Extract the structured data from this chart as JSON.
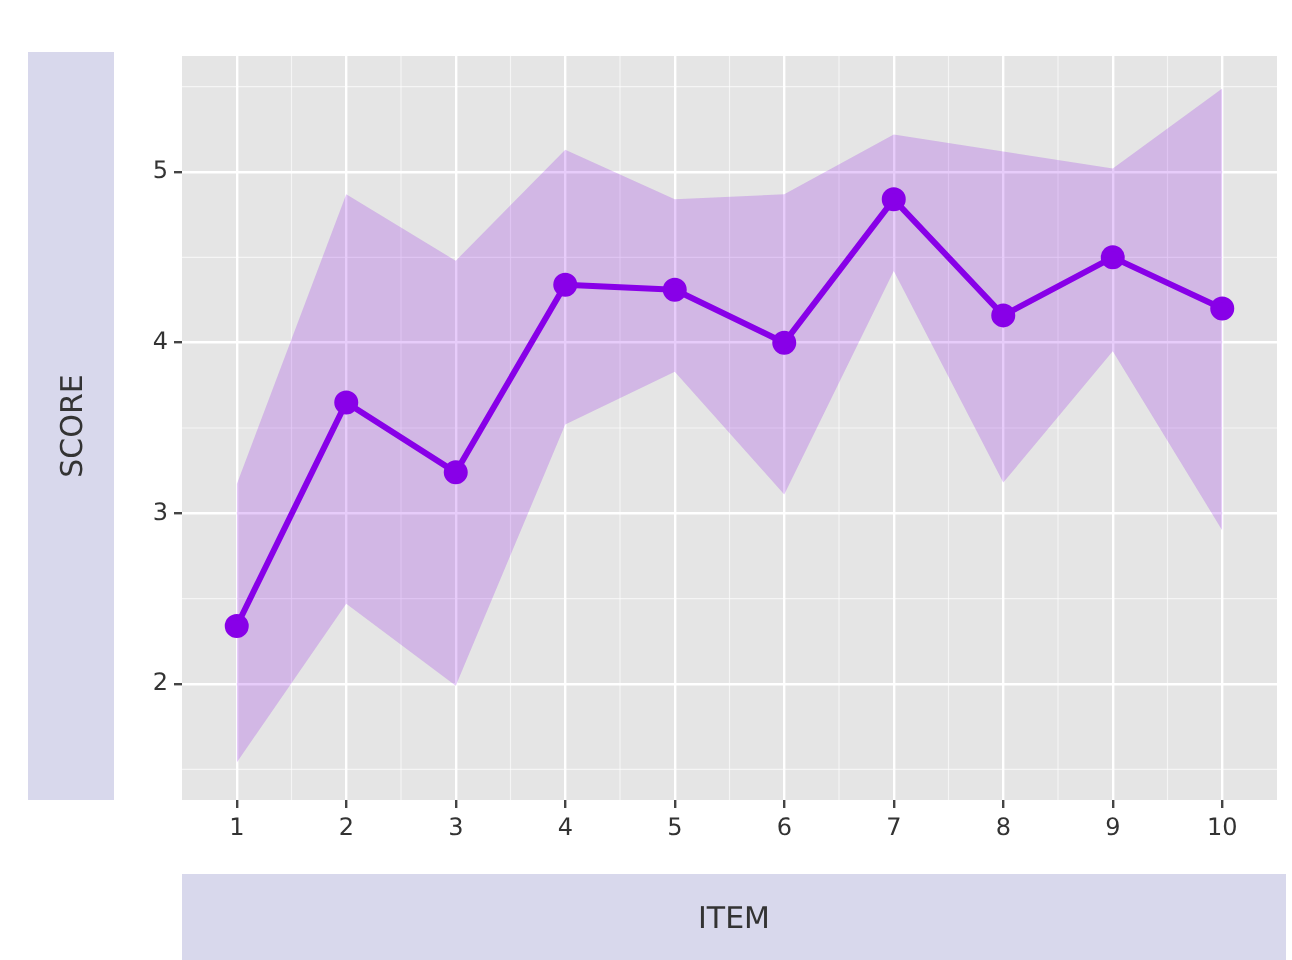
{
  "chart_data": {
    "type": "line",
    "xlabel": "ITEM",
    "ylabel": "SCORE",
    "categories": [
      "1",
      "2",
      "3",
      "4",
      "5",
      "6",
      "7",
      "8",
      "9",
      "10"
    ],
    "series": [
      {
        "color": "#8800e8",
        "values": [
          2.34,
          3.65,
          3.24,
          4.34,
          4.31,
          4.0,
          4.84,
          4.16,
          4.5,
          4.2
        ],
        "lower": [
          1.54,
          2.47,
          1.99,
          3.52,
          3.83,
          3.11,
          4.42,
          3.18,
          3.95,
          2.9
        ],
        "upper": [
          3.17,
          4.87,
          4.48,
          5.13,
          4.84,
          4.87,
          5.22,
          5.12,
          5.02,
          5.49
        ]
      }
    ],
    "ylim": [
      1.32,
      5.68
    ],
    "yticks": [
      2,
      3,
      4,
      5
    ],
    "grid": true,
    "legend": false,
    "marker": "circle",
    "line_style": "solid"
  }
}
